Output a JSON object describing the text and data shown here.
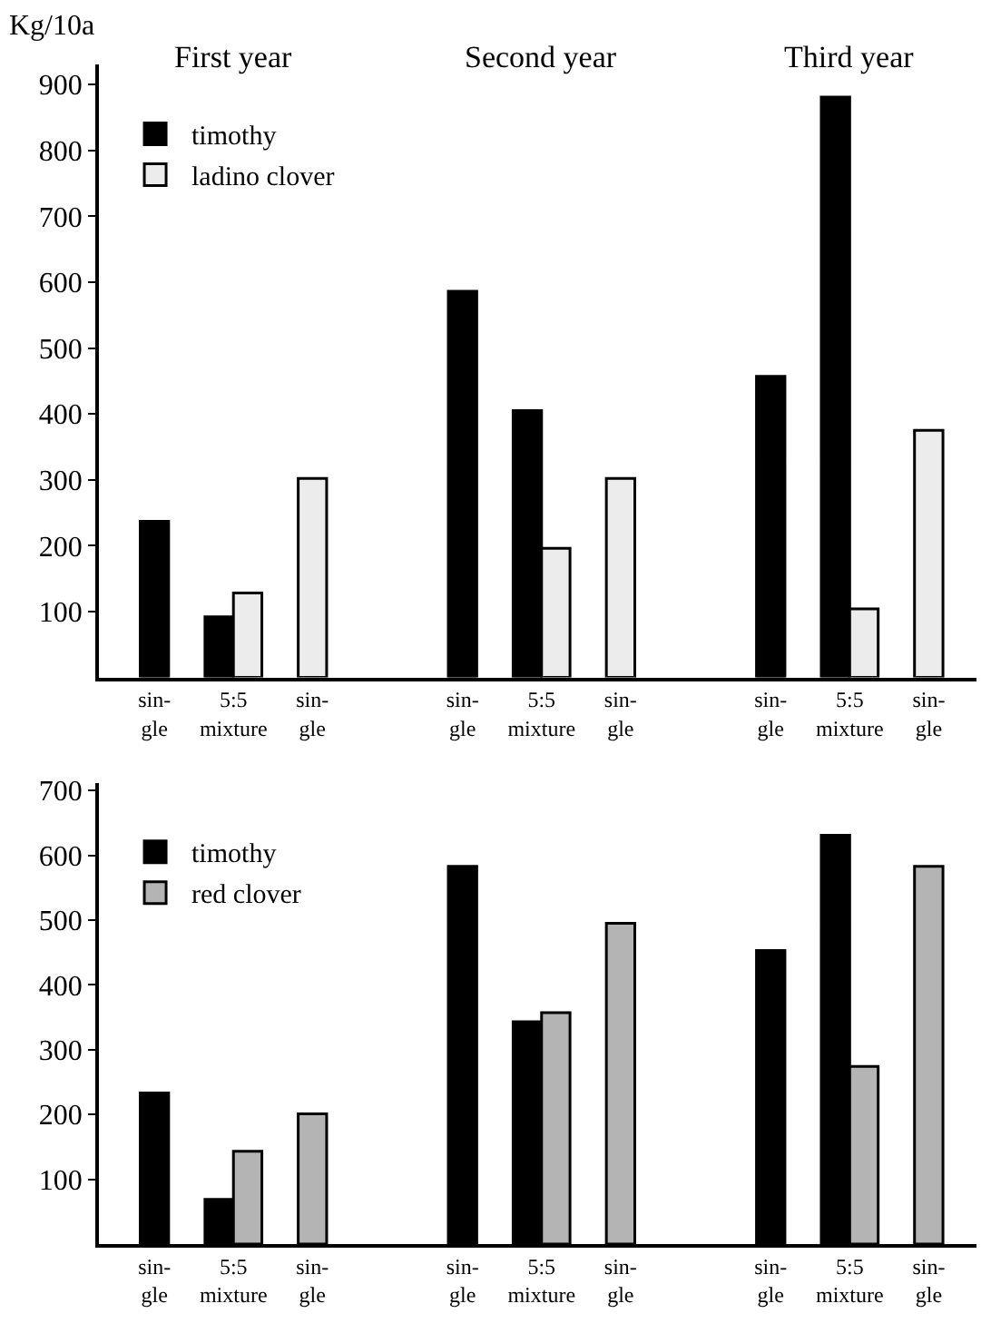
{
  "chart_data": [
    {
      "type": "bar",
      "ylabel": "Kg/10a",
      "annotations": [
        "First year",
        "Second year",
        "Third year"
      ],
      "categories": [
        "sin-\ngle",
        "5:5\nmixture",
        "sin-\ngle",
        "sin-\ngle",
        "5:5\nmixture",
        "sin-\ngle",
        "sin-\ngle",
        "5:5\nmixture",
        "sin-\ngle"
      ],
      "series": [
        {
          "name": "timothy",
          "color": "#000000",
          "values": [
            237,
            92,
            null,
            586,
            405,
            null,
            457,
            881,
            null
          ]
        },
        {
          "name": "ladino clover",
          "color": "#ececec",
          "values": [
            null,
            128,
            302,
            null,
            196,
            302,
            null,
            104,
            375
          ]
        }
      ],
      "ylim": [
        0,
        930
      ],
      "yticks": [
        100,
        200,
        300,
        400,
        500,
        600,
        700,
        800,
        900
      ],
      "legend": "top left"
    },
    {
      "type": "bar",
      "categories": [
        "sin-\ngle",
        "5:5\nmixture",
        "sin-\ngle",
        "sin-\ngle",
        "5:5\nmixture",
        "sin-\ngle",
        "sin-\ngle",
        "5:5\nmixture",
        "sin-\ngle"
      ],
      "series": [
        {
          "name": "timothy",
          "color": "#000000",
          "values": [
            233,
            69,
            null,
            583,
            343,
            null,
            453,
            631,
            null
          ]
        },
        {
          "name": "red clover",
          "color": "#b4b4b4",
          "values": [
            null,
            143,
            201,
            null,
            357,
            495,
            null,
            274,
            583
          ]
        }
      ],
      "ylim": [
        0,
        712
      ],
      "yticks": [
        100,
        200,
        300,
        400,
        500,
        600,
        700
      ],
      "legend": "top left"
    }
  ]
}
